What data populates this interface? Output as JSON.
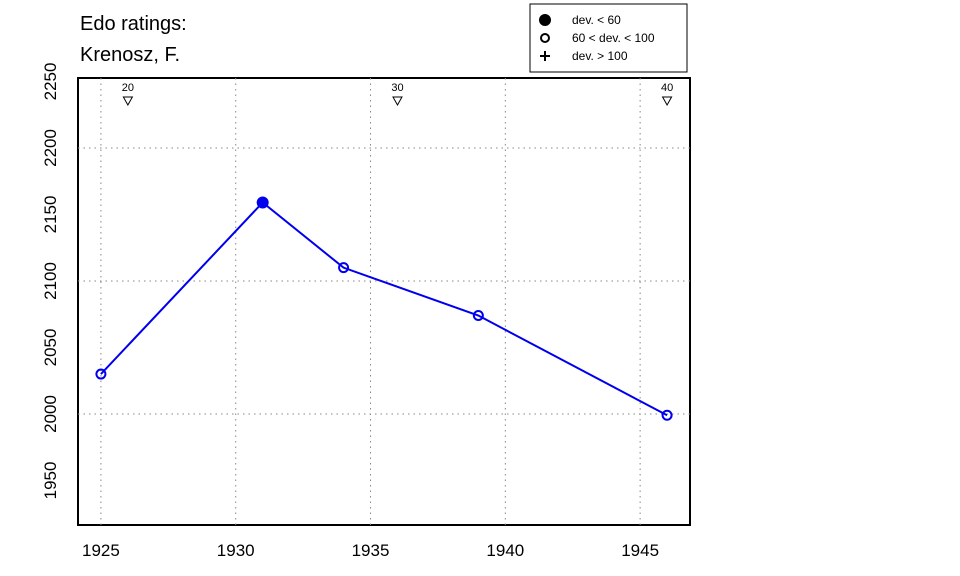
{
  "chart_data": {
    "type": "line",
    "title": "Edo ratings:",
    "subtitle": "Krenosz, F.",
    "x": [
      1925,
      1931,
      1934,
      1939,
      1946
    ],
    "series": [
      {
        "color": "#0000ee",
        "values": [
          2030,
          2159,
          2110,
          2074,
          1999
        ],
        "symbols": [
          "open",
          "filled",
          "open",
          "open",
          "open"
        ]
      }
    ],
    "xlim": [
      1924.15,
      1946.85
    ],
    "ylim": [
      1916.5,
      2252.6
    ],
    "xticks": [
      1925,
      1930,
      1935,
      1940,
      1945
    ],
    "yticks": [
      1950,
      2000,
      2050,
      2100,
      2150,
      2200,
      2250
    ],
    "xgrid": [
      1925,
      1930,
      1935,
      1940,
      1945
    ],
    "ygrid": [
      2000,
      2100,
      2200
    ],
    "annotations": [
      {
        "x": 1926,
        "text": "20"
      },
      {
        "x": 1936,
        "text": "30"
      },
      {
        "x": 1946,
        "text": "40"
      }
    ],
    "legend": [
      {
        "label": "dev. < 60",
        "symbol": "filled"
      },
      {
        "label": "60 < dev. < 100",
        "symbol": "open"
      },
      {
        "label": "dev. > 100",
        "symbol": "plus"
      }
    ],
    "legend_position": "top-right"
  }
}
